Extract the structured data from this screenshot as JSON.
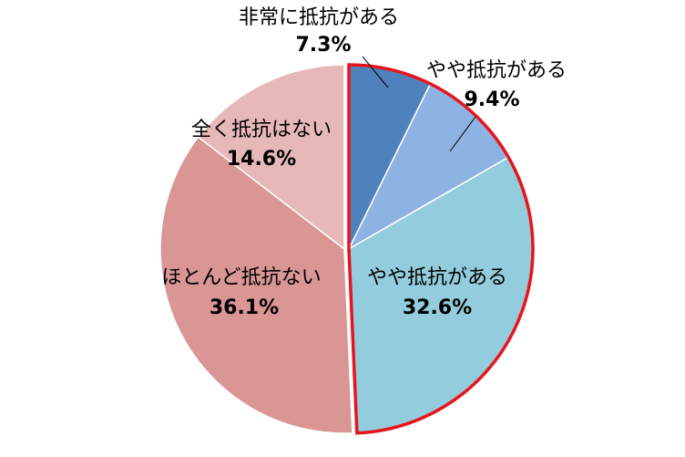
{
  "chart_data": {
    "type": "pie",
    "categories": [
      "非常に抵抗がある",
      "やや抵抗がある",
      "やや抵抗がある",
      "ほとんど抵抗ない",
      "全く抵抗はない"
    ],
    "values": [
      7.3,
      9.4,
      32.6,
      36.1,
      14.6
    ],
    "value_labels": [
      "7.3%",
      "9.4%",
      "32.6%",
      "36.1%",
      "14.6%"
    ],
    "colors": [
      "#4f81bd",
      "#8db3e2",
      "#93cddd",
      "#d99694",
      "#e6b9b8"
    ],
    "outlined": [
      0,
      1,
      2
    ],
    "outline_color": "#e8141c"
  }
}
